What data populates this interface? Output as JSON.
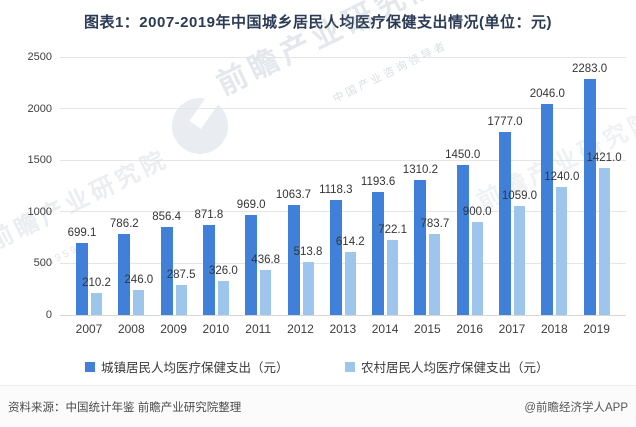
{
  "title": "图表1：2007-2019年中国城乡居民人均医疗保健支出情况(单位：元)",
  "chart_data": {
    "type": "bar",
    "categories": [
      "2007",
      "2008",
      "2009",
      "2010",
      "2011",
      "2012",
      "2013",
      "2014",
      "2015",
      "2016",
      "2017",
      "2018",
      "2019"
    ],
    "series": [
      {
        "name": "城镇居民人均医疗保健支出（元）",
        "color": "#4180d8",
        "values": [
          699.1,
          786.2,
          856.4,
          871.8,
          969.0,
          1063.7,
          1118.3,
          1193.6,
          1310.2,
          1450.0,
          1777.0,
          2046.0,
          2283.0
        ]
      },
      {
        "name": "农村居民人均医疗保健支出（元）",
        "color": "#9ec5ec",
        "values": [
          210.2,
          246.0,
          287.5,
          326.0,
          436.8,
          513.8,
          614.2,
          722.1,
          783.7,
          900.0,
          1059.0,
          1240.0,
          1421.0
        ]
      }
    ],
    "ylim": [
      0,
      2500
    ],
    "yticks": [
      0,
      500,
      1000,
      1500,
      2000,
      2500
    ],
    "grid": true,
    "legend_position": "bottom",
    "data_labels": true
  },
  "watermark": {
    "brand": "前瞻产业研究院",
    "tagline": "中国产业咨询领导者",
    "code": "839599"
  },
  "footer": {
    "source": "资料来源：中国统计年鉴 前瞻产业研究院整理",
    "credit": "@前瞻经济学人APP"
  }
}
